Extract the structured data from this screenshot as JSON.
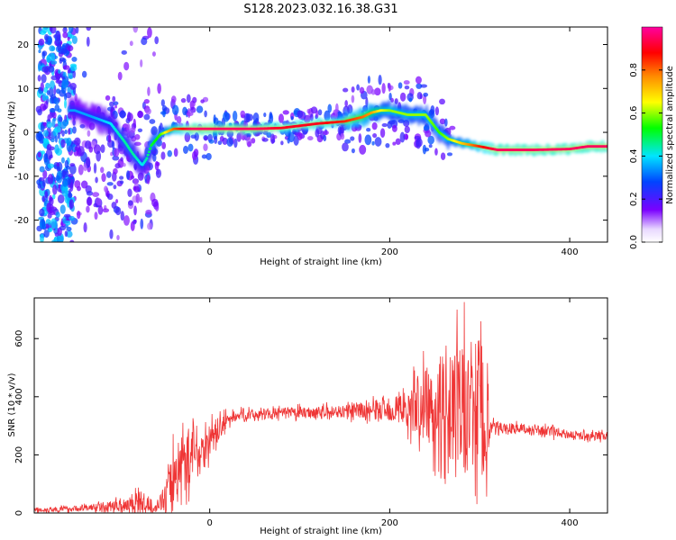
{
  "figure": {
    "title": "S128.2023.032.16.38.G31"
  },
  "chart_data": [
    {
      "type": "heatmap",
      "title": "S128.2023.032.16.38.G31",
      "xlabel": "Height of straight line (km)",
      "ylabel": "Frequency (Hz)",
      "xlim": [
        -195,
        442
      ],
      "ylim": [
        -25,
        24
      ],
      "xticks": [
        0,
        200,
        400
      ],
      "yticks": [
        -20,
        -10,
        0,
        10,
        20
      ],
      "colorbar": {
        "label": "Normalized spectral amplitude",
        "range": [
          0,
          1
        ],
        "ticks": [
          0.0,
          0.2,
          0.4,
          0.6,
          0.8
        ],
        "tick_labels": [
          "0.0",
          "0.2",
          "0.4",
          "0.6",
          "0.8"
        ],
        "colormap": [
          "#ffffff",
          "#7a00ff",
          "#0044ff",
          "#00e5ff",
          "#00ff00",
          "#ffff00",
          "#ff8c00",
          "#ff0000",
          "#ff00a0"
        ]
      },
      "ridge": {
        "x": [
          -150,
          -130,
          -110,
          -95,
          -85,
          -75,
          -70,
          -65,
          -55,
          -40,
          -20,
          0,
          50,
          80,
          100,
          120,
          150,
          170,
          180,
          190,
          200,
          210,
          220,
          240,
          255,
          265,
          280,
          300,
          320,
          360,
          400,
          420,
          442
        ],
        "freq": [
          5,
          3.5,
          2,
          -2,
          -5,
          -7.5,
          -6,
          -3,
          -0.5,
          0.8,
          0.8,
          0.8,
          0.8,
          1,
          1.5,
          2,
          2.5,
          3.5,
          4.5,
          5,
          5,
          4.5,
          4,
          4,
          0,
          -1.5,
          -2.5,
          -3.2,
          -4,
          -4,
          -3.8,
          -3.2,
          -3.2
        ],
        "amplitude": [
          0.35,
          0.35,
          0.4,
          0.45,
          0.45,
          0.4,
          0.45,
          0.5,
          0.55,
          0.8,
          0.95,
          0.95,
          0.95,
          0.9,
          0.9,
          0.9,
          0.85,
          0.8,
          0.75,
          0.65,
          0.6,
          0.6,
          0.6,
          0.6,
          0.55,
          0.6,
          0.7,
          0.85,
          0.95,
          0.95,
          0.95,
          0.95,
          0.95
        ]
      },
      "grid": false
    },
    {
      "type": "line",
      "xlabel": "Height of straight line (km)",
      "ylabel": "SNR (10 * v/v)",
      "xlim": [
        -195,
        442
      ],
      "ylim": [
        0,
        740
      ],
      "xticks": [
        0,
        200,
        400
      ],
      "yticks": [
        0,
        200,
        400,
        600
      ],
      "series": [
        {
          "color": "#ef3535",
          "x": [
            -195,
            -150,
            -100,
            -80,
            -60,
            -50,
            -40,
            -30,
            -20,
            -10,
            0,
            10,
            20,
            30,
            50,
            100,
            150,
            200,
            220,
            240,
            260,
            280,
            300,
            310,
            312,
            320,
            340,
            360,
            380,
            400,
            420,
            442
          ],
          "y": [
            10,
            15,
            25,
            40,
            20,
            50,
            120,
            180,
            200,
            210,
            250,
            290,
            320,
            335,
            340,
            345,
            350,
            355,
            360,
            370,
            370,
            360,
            370,
            300,
            290,
            295,
            290,
            285,
            280,
            270,
            265,
            265
          ],
          "noise": [
            8,
            10,
            20,
            45,
            15,
            40,
            120,
            110,
            100,
            80,
            60,
            40,
            25,
            18,
            18,
            20,
            22,
            40,
            70,
            130,
            180,
            230,
            260,
            200,
            25,
            20,
            18,
            18,
            18,
            15,
            15,
            15
          ]
        }
      ],
      "grid": false
    }
  ]
}
